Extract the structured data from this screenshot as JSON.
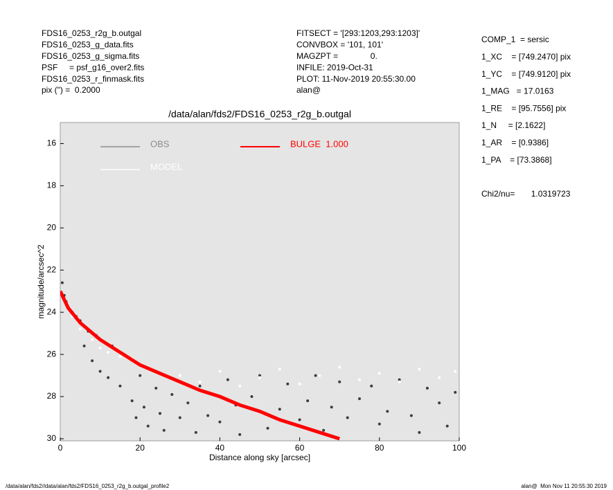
{
  "chart_data": {
    "type": "scatter",
    "title": "/data/alan/fds2/FDS16_0253_r2g_b.outgal",
    "xlabel": "Distance along sky [arcsec]",
    "ylabel": "magnitude/arcsec^2",
    "xlim": [
      0,
      100
    ],
    "ylim": [
      30.1,
      15
    ],
    "xticks": [
      0,
      20,
      40,
      60,
      80,
      100
    ],
    "yticks": [
      16,
      18,
      20,
      22,
      24,
      26,
      28,
      30
    ],
    "background": "#e5e5e5",
    "series": [
      {
        "name": "OBS",
        "color": "#3c3c3c",
        "legend_color": "#8c8c8c",
        "style": "points",
        "x": [
          0.5,
          1,
          1.5,
          2,
          3,
          4,
          5,
          6,
          7,
          8,
          9,
          10,
          11,
          12,
          13,
          15,
          16,
          18,
          19,
          20,
          21,
          22,
          24,
          25,
          26,
          28,
          30,
          32,
          34,
          35,
          37,
          40,
          42,
          44,
          45,
          48,
          50,
          52,
          55,
          57,
          60,
          62,
          64,
          66,
          68,
          70,
          72,
          75,
          78,
          80,
          82,
          85,
          88,
          90,
          92,
          95,
          97,
          99
        ],
        "values": [
          22.6,
          23.2,
          23.5,
          23.8,
          24.0,
          24.2,
          24.4,
          25.6,
          24.9,
          26.3,
          25.1,
          26.8,
          25.4,
          27.1,
          25.6,
          27.5,
          26.0,
          28.2,
          29.0,
          27.0,
          28.5,
          29.4,
          27.6,
          28.8,
          29.6,
          27.9,
          29.0,
          28.3,
          29.7,
          27.5,
          28.9,
          29.2,
          27.2,
          28.4,
          29.8,
          28.0,
          27.0,
          29.5,
          28.6,
          27.4,
          29.1,
          28.2,
          27.0,
          29.6,
          28.5,
          27.3,
          29.0,
          28.1,
          27.5,
          29.3,
          28.7,
          27.2,
          28.9,
          29.7,
          27.6,
          28.3,
          29.4,
          27.8
        ]
      },
      {
        "name": "MODEL",
        "color": "#ffffff",
        "style": "points",
        "x": [
          3,
          5,
          8,
          10,
          12,
          15,
          18,
          20,
          25,
          30,
          35,
          40,
          45,
          50,
          55,
          60,
          65,
          70,
          75,
          80,
          85,
          90,
          95,
          99
        ],
        "values": [
          24.2,
          24.8,
          25.3,
          25.7,
          25.9,
          26.1,
          26.2,
          26.5,
          26.9,
          27.0,
          27.3,
          26.8,
          27.5,
          27.1,
          26.7,
          27.4,
          27.0,
          26.6,
          27.2,
          26.9,
          27.3,
          26.7,
          27.1,
          26.8
        ]
      },
      {
        "name": "BULGE  1.000",
        "color": "#ff0000",
        "style": "line",
        "x": [
          0,
          2,
          5,
          10,
          15,
          20,
          25,
          30,
          35,
          40,
          45,
          50,
          55,
          60,
          65,
          70
        ],
        "values": [
          23.0,
          23.8,
          24.5,
          25.3,
          25.9,
          26.5,
          26.9,
          27.3,
          27.7,
          28.0,
          28.4,
          28.7,
          29.1,
          29.4,
          29.7,
          30.0
        ]
      }
    ],
    "annotations": {
      "left": [
        "FDS16_0253_r2g_b.outgal",
        "FDS16_0253_g_data.fits",
        "FDS16_0253_g_sigma.fits",
        "PSF     = psf_g16_over2.fits",
        "FDS16_0253_r_finmask.fits",
        "pix (\") =  0.2000"
      ],
      "middle": [
        "FITSECT = '[293:1203,293:1203]'",
        "CONVBOX = '101, 101'",
        "MAGZPT =              0.",
        "INFILE: 2019-Oct-31",
        "PLOT: 11-Nov-2019 20:55:30.00",
        "alan@"
      ],
      "right": [
        "COMP_1  = sersic",
        "1_XC    = [749.2470] pix",
        "1_YC    = [749.9120] pix",
        "1_MAG   = 17.0163",
        "1_RE    = [95.7556] pix",
        "1_N     = [2.1622]",
        "1_AR    = [0.9386]",
        "1_PA    = [73.3868]"
      ],
      "chi": "Chi2/nu=       1.0319723",
      "footer_left": "/data/alan/fds2//data/alan/fds2/FDS16_0253_r2g_b.outgal_profile2",
      "footer_right": "alan@  Mon Nov 11 20:55:30 2019"
    }
  }
}
